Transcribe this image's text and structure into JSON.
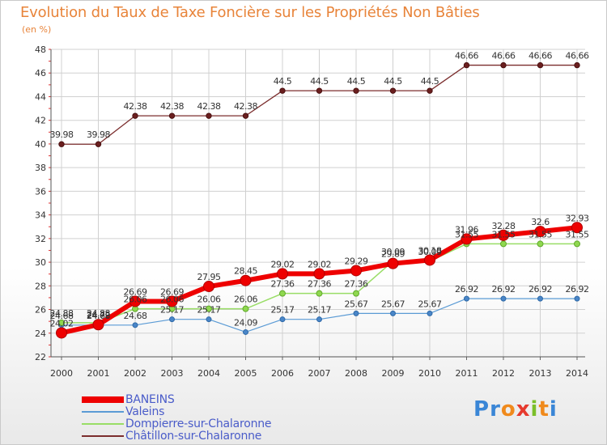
{
  "chart_data": {
    "type": "line",
    "title": "Evolution du Taux de Taxe Foncière sur les Propriétés Non Bâties",
    "ylabel": "(en %)",
    "xlabel": "",
    "ylim": [
      22,
      48
    ],
    "yticks": [
      "22",
      "24",
      "26",
      "28",
      "30",
      "32",
      "34",
      "36",
      "38",
      "40",
      "42",
      "44",
      "46",
      "48"
    ],
    "categories": [
      "2000",
      "2001",
      "2002",
      "2003",
      "2004",
      "2005",
      "2006",
      "2007",
      "2008",
      "2009",
      "2010",
      "2011",
      "2012",
      "2013",
      "2014"
    ],
    "series": [
      {
        "name": "BANEINS",
        "color": "#ee0000",
        "values": [
          24.02,
          24.72,
          26.69,
          26.69,
          27.95,
          28.45,
          29.02,
          29.02,
          29.29,
          29.89,
          30.18,
          31.96,
          32.28,
          32.6,
          32.93
        ],
        "labels": [
          "24.02",
          "24.72",
          "26.69",
          "26.69",
          "27.95",
          "28.45",
          "29.02",
          "29.02",
          "29.29",
          "29.89",
          "30.18",
          "31.96",
          "32.28",
          "32.6",
          "32.93"
        ]
      },
      {
        "name": "Valeins",
        "color": "#5b9bd5",
        "values": [
          24.68,
          24.68,
          24.68,
          25.17,
          25.17,
          24.09,
          25.17,
          25.17,
          25.67,
          25.67,
          25.67,
          26.92,
          26.92,
          26.92,
          26.92
        ],
        "labels": [
          "24.68",
          "24.68",
          "24.68",
          "25.17",
          "25.17",
          "24.09",
          "25.17",
          "25.17",
          "25.67",
          "25.67",
          "25.67",
          "26.92",
          "26.92",
          "26.92",
          "26.92"
        ]
      },
      {
        "name": "Dompierre-sur-Chalaronne",
        "color": "#99dd66",
        "values": [
          24.88,
          24.88,
          26.06,
          26.06,
          26.06,
          26.06,
          27.36,
          27.36,
          27.36,
          30.09,
          30.09,
          31.55,
          31.55,
          31.55,
          31.55
        ],
        "labels": [
          "24.88",
          "24.88",
          "26.06",
          "26.06",
          "26.06",
          "26.06",
          "27.36",
          "27.36",
          "27.36",
          "30.09",
          "30.09",
          "31.55",
          "31.55",
          "31.55",
          "31.55"
        ]
      },
      {
        "name": "Châtillon-sur-Chalaronne",
        "color": "#7b2d2d",
        "values": [
          39.98,
          39.98,
          42.38,
          42.38,
          42.38,
          42.38,
          44.5,
          44.5,
          44.5,
          44.5,
          44.5,
          46.66,
          46.66,
          46.66,
          46.66
        ],
        "labels": [
          "39.98",
          "39.98",
          "42.38",
          "42.38",
          "42.38",
          "42.38",
          "44.5",
          "44.5",
          "44.5",
          "44.5",
          "44.5",
          "46.66",
          "46.66",
          "46.66",
          "46.66"
        ]
      }
    ],
    "legend": "bottom-left"
  },
  "logo": {
    "letters": [
      "P",
      "r",
      "o",
      "x",
      "i",
      "t",
      "i"
    ],
    "colors": [
      "#3a86d6",
      "#3a86d6",
      "#f08a1c",
      "#e63a2e",
      "#7bbf2a",
      "#f08a1c",
      "#3a86d6"
    ]
  }
}
